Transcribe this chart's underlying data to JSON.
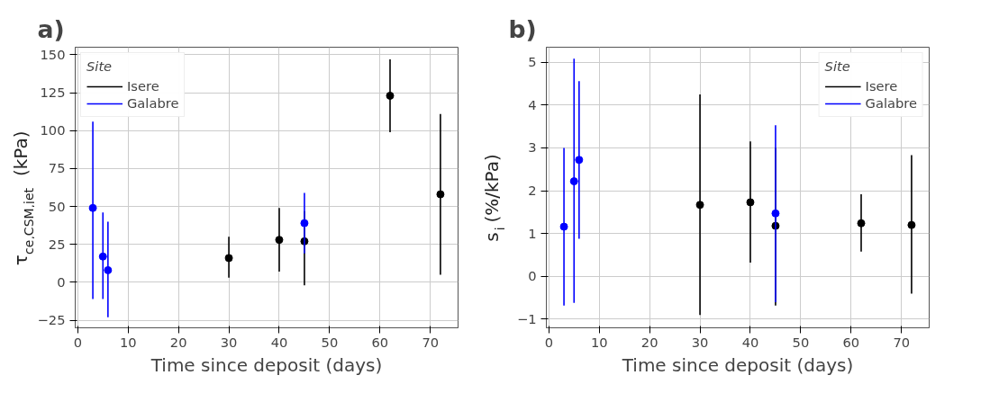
{
  "chart_data": [
    {
      "type": "scatter",
      "title": "a)",
      "xlabel": "Time since deposit (days)",
      "ylabel": "τ$_{ce,CSM,jet}$ (kPa)",
      "legend_title": "Site",
      "legend": "top left",
      "grid": true,
      "marker": "circle",
      "xlim": [
        -0.5,
        75.5
      ],
      "xticks": [
        0,
        10,
        20,
        30,
        40,
        50,
        60,
        70
      ],
      "ylim": [
        -30,
        155
      ],
      "yticks": [
        -25,
        0,
        25,
        50,
        75,
        100,
        125,
        150
      ],
      "series": [
        {
          "name": "Isere",
          "color": "#000000",
          "x": [
            30,
            40,
            45,
            62,
            72
          ],
          "values": [
            16,
            28,
            27,
            123,
            58
          ],
          "errors": [
            [
              3,
              30
            ],
            [
              7,
              49
            ],
            [
              -2,
              47
            ],
            [
              99,
              147
            ],
            [
              5,
              111
            ]
          ]
        },
        {
          "name": "Galabre",
          "color": "#0000ff",
          "x": [
            3,
            5,
            6,
            45
          ],
          "values": [
            49,
            17,
            8,
            39
          ],
          "errors": [
            [
              -11,
              106
            ],
            [
              -11,
              46
            ],
            [
              -23,
              40
            ],
            [
              19,
              59
            ]
          ]
        }
      ]
    },
    {
      "type": "scatter",
      "title": "b)",
      "xlabel": "Time since deposit (days)",
      "ylabel": "s$_{i}$ (%/kPa)",
      "legend_title": "Site",
      "legend": "top right",
      "grid": true,
      "marker": "circle",
      "xlim": [
        -0.5,
        75.5
      ],
      "xticks": [
        0,
        10,
        20,
        30,
        40,
        50,
        60,
        70
      ],
      "ylim": [
        -1.2,
        5.35
      ],
      "yticks": [
        -1,
        0,
        1,
        2,
        3,
        4,
        5
      ],
      "series": [
        {
          "name": "Isere",
          "color": "#000000",
          "x": [
            30,
            40,
            45,
            62,
            72
          ],
          "values": [
            1.67,
            1.73,
            1.18,
            1.24,
            1.2
          ],
          "errors": [
            [
              -0.9,
              4.25
            ],
            [
              0.32,
              3.15
            ],
            [
              -0.68,
              3.0
            ],
            [
              0.58,
              1.92
            ],
            [
              -0.4,
              2.83
            ]
          ]
        },
        {
          "name": "Galabre",
          "color": "#0000ff",
          "x": [
            3,
            5,
            6,
            45
          ],
          "values": [
            1.16,
            2.22,
            2.72,
            1.47
          ],
          "errors": [
            [
              -0.68,
              3.0
            ],
            [
              -0.62,
              5.08
            ],
            [
              0.88,
              4.56
            ],
            [
              -0.6,
              3.53
            ]
          ]
        }
      ]
    }
  ]
}
